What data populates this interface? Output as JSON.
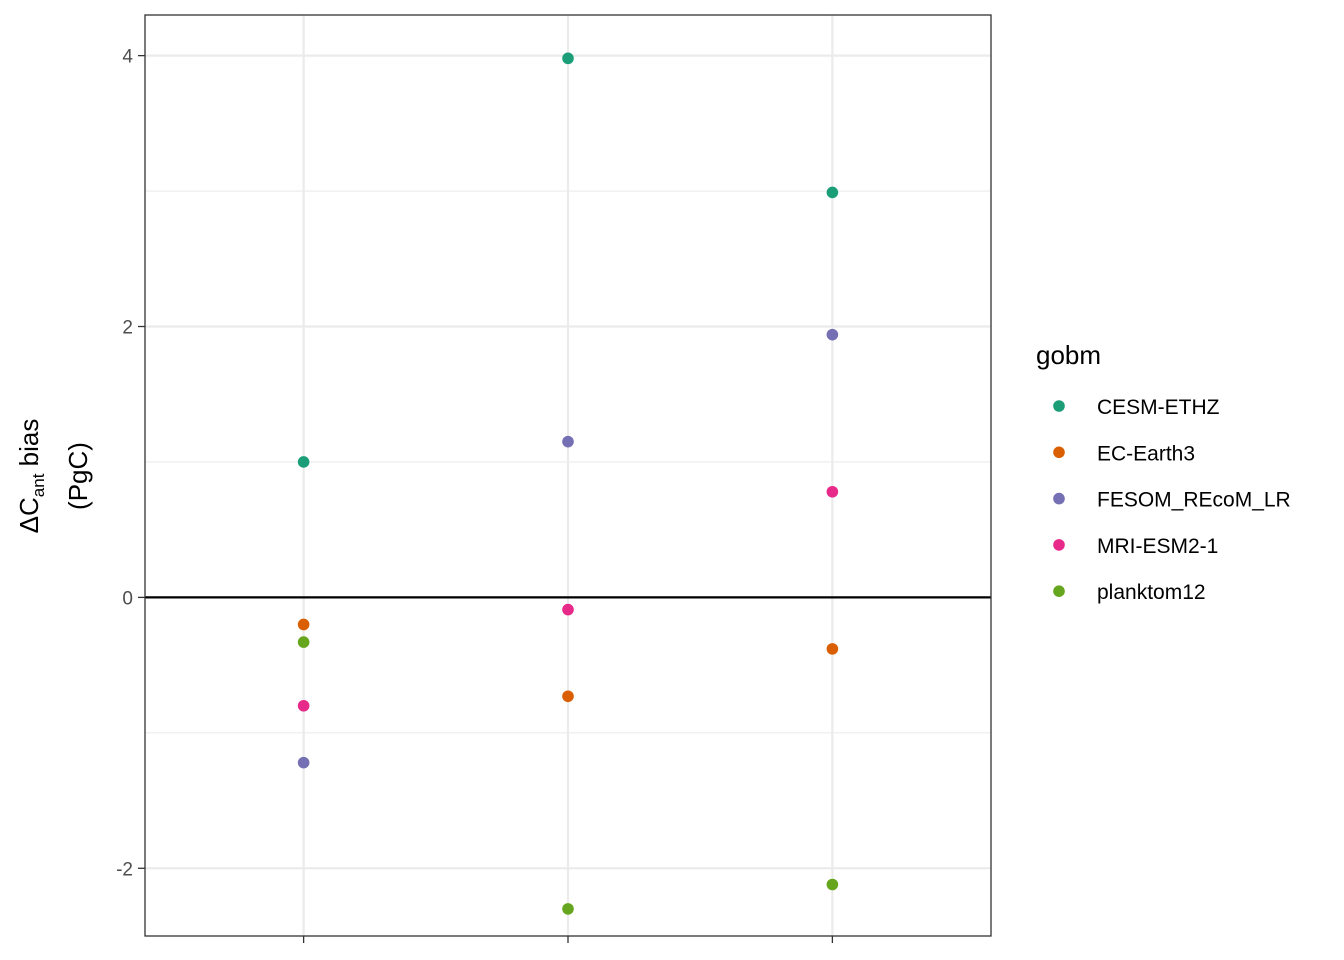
{
  "chart_data": {
    "type": "scatter",
    "x_categories": [
      "",
      "",
      ""
    ],
    "ylabel": {
      "prefix": "ΔC",
      "subscript": "ant",
      "suffix": " bias",
      "unit": "(PgC)"
    },
    "ylim": [
      -2.5,
      4.3
    ],
    "yticks": [
      -2,
      0,
      2,
      4
    ],
    "ytick_labels": [
      "-2",
      "0",
      "2",
      "4"
    ],
    "y_minor_gridlines": [
      -1,
      1,
      3
    ],
    "hline": 0,
    "grid": true,
    "legend": {
      "title": "gobm",
      "placement": "right"
    },
    "series": [
      {
        "name": "CESM-ETHZ",
        "color": "#1b9e77",
        "values": [
          1.0,
          3.98,
          2.99
        ]
      },
      {
        "name": "EC-Earth3",
        "color": "#d95f02",
        "values": [
          -0.2,
          -0.73,
          -0.38
        ]
      },
      {
        "name": "FESOM_REcoM_LR",
        "color": "#7570b3",
        "values": [
          -1.22,
          1.15,
          1.94
        ]
      },
      {
        "name": "MRI-ESM2-1",
        "color": "#e7298a",
        "values": [
          -0.8,
          -0.09,
          0.78
        ]
      },
      {
        "name": "planktom12",
        "color": "#66a61e",
        "values": [
          -0.33,
          -2.3,
          -2.12
        ]
      }
    ]
  }
}
